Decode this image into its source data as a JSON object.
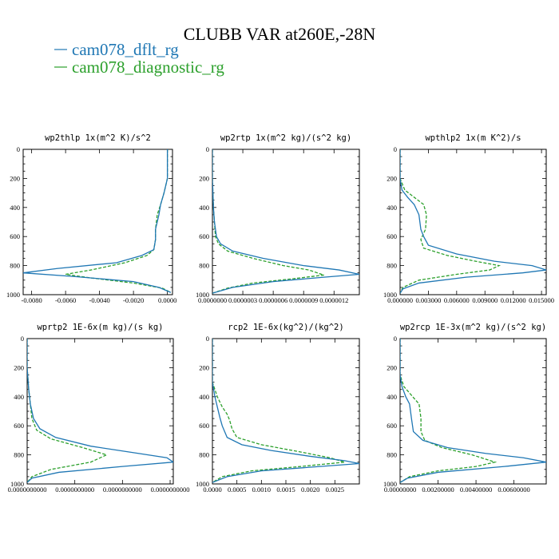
{
  "figure": {
    "title": "CLUBB VAR at260E,-28N",
    "legend": [
      {
        "label": "cam078_dflt_rg",
        "color": "#1f77b4",
        "dash": "solid"
      },
      {
        "label": "cam078_diagnostic_rg",
        "color": "#2ca02c",
        "dash": "dashed"
      }
    ]
  },
  "chart_data": [
    {
      "type": "line",
      "title": "wp2thlp  1x(m^2 K)/s^2",
      "xlim": [
        -0.0085,
        0.0003
      ],
      "ylim": [
        1000,
        0
      ],
      "grid": false,
      "x_ticks": [
        -0.008,
        -0.006,
        -0.004,
        -0.002,
        0
      ],
      "x_tick_labels": [
        "-0.0080",
        "-0.0060",
        "-0.0040",
        "-0.0020",
        "0.0000"
      ],
      "y_ticks": [
        0,
        200,
        400,
        600,
        800,
        1000
      ],
      "y_tick_labels": [
        "0",
        "200",
        "400",
        "600",
        "800",
        "1000"
      ],
      "series": [
        {
          "name": "cam078_dflt_rg",
          "color": "#1f77b4",
          "x": [
            0.0,
            0.0,
            0.0,
            -0.0002,
            -0.0004,
            -0.0005,
            -0.0007,
            -0.0007,
            -0.0008,
            -0.0015,
            -0.003,
            -0.0065,
            -0.0085,
            -0.0055,
            -0.002,
            -0.0005,
            0.0002
          ],
          "y": [
            0,
            100,
            200,
            300,
            380,
            450,
            550,
            620,
            690,
            730,
            780,
            820,
            850,
            875,
            910,
            950,
            985
          ]
        },
        {
          "name": "cam078_diagnostic_rg",
          "color": "#2ca02c",
          "x": [
            0.0,
            0.0,
            0.0,
            -0.0002,
            -0.0004,
            -0.0006,
            -0.0007,
            -0.0007,
            -0.0008,
            -0.0012,
            -0.0025,
            -0.0045,
            -0.006,
            -0.0045,
            -0.002,
            -0.0003,
            0.0002
          ],
          "y": [
            0,
            100,
            200,
            300,
            380,
            450,
            550,
            620,
            690,
            730,
            780,
            830,
            860,
            885,
            920,
            955,
            985
          ]
        }
      ]
    },
    {
      "type": "line",
      "title": "wp2rtp  1x(m^2 kg)/(s^2 kg)",
      "xlim": [
        0,
        1.45e-06
      ],
      "ylim": [
        1000,
        0
      ],
      "grid": false,
      "x_ticks": [
        0,
        3e-07,
        6e-07,
        9e-07,
        1.2e-06
      ],
      "x_tick_labels": [
        "0.0000000",
        "0.0000003",
        "0.0000006",
        "0.0000009",
        "0.0000012"
      ],
      "y_ticks": [
        0,
        200,
        400,
        600,
        800,
        1000
      ],
      "y_tick_labels": [
        "0",
        "200",
        "400",
        "600",
        "800",
        "1000"
      ],
      "series": [
        {
          "name": "cam078_dflt_rg",
          "color": "#1f77b4",
          "x": [
            0,
            0,
            5e-09,
            1e-08,
            2e-08,
            4e-08,
            8e-08,
            2e-07,
            5e-07,
            9e-07,
            1.25e-06,
            1.45e-06,
            1.1e-06,
            6e-07,
            2e-07,
            0
          ],
          "y": [
            0,
            200,
            300,
            400,
            500,
            600,
            650,
            700,
            750,
            800,
            830,
            860,
            880,
            910,
            950,
            990
          ]
        },
        {
          "name": "cam078_diagnostic_rg",
          "color": "#2ca02c",
          "x": [
            0,
            0,
            5e-09,
            1e-08,
            2e-08,
            3e-08,
            6e-08,
            1.5e-07,
            4e-07,
            7e-07,
            9.5e-07,
            1.1e-06,
            8e-07,
            4e-07,
            1.5e-07,
            0
          ],
          "y": [
            0,
            200,
            300,
            400,
            500,
            600,
            650,
            700,
            750,
            800,
            830,
            865,
            890,
            920,
            955,
            990
          ]
        }
      ]
    },
    {
      "type": "line",
      "title": "wpthlp2  1x(m K^2)/s",
      "xlim": [
        0,
        0.0155
      ],
      "ylim": [
        1000,
        0
      ],
      "grid": false,
      "x_ticks": [
        0,
        0.003,
        0.006,
        0.009,
        0.012,
        0.015
      ],
      "x_tick_labels": [
        "0.000000",
        "0.003000",
        "0.006000",
        "0.009000",
        "0.012000",
        "0.015000"
      ],
      "y_ticks": [
        0,
        200,
        400,
        600,
        800,
        1000
      ],
      "y_tick_labels": [
        "0",
        "200",
        "400",
        "600",
        "800",
        "1000"
      ],
      "series": [
        {
          "name": "cam078_dflt_rg",
          "color": "#1f77b4",
          "x": [
            0,
            0,
            0.0002,
            0.0008,
            0.0015,
            0.002,
            0.0022,
            0.0025,
            0.003,
            0.006,
            0.01,
            0.014,
            0.0155,
            0.013,
            0.007,
            0.002,
            0.0003,
            0
          ],
          "y": [
            0,
            200,
            280,
            330,
            380,
            450,
            550,
            600,
            660,
            720,
            770,
            800,
            830,
            850,
            880,
            920,
            960,
            990
          ]
        },
        {
          "name": "cam078_diagnostic_rg",
          "color": "#2ca02c",
          "x": [
            0,
            0,
            0.0005,
            0.0015,
            0.0025,
            0.0028,
            0.0027,
            0.0022,
            0.0025,
            0.005,
            0.008,
            0.0105,
            0.0095,
            0.006,
            0.002,
            0.0003,
            0
          ],
          "y": [
            0,
            200,
            280,
            330,
            380,
            450,
            550,
            620,
            680,
            730,
            770,
            800,
            830,
            860,
            900,
            950,
            990
          ]
        }
      ]
    },
    {
      "type": "line",
      "title": "wprtp2  1E-6x(m kg)/(s kg)",
      "xlim": [
        0,
        9.2e-11
      ],
      "ylim": [
        1000,
        0
      ],
      "grid": false,
      "x_ticks": [
        0,
        3e-11,
        6e-11,
        9e-11
      ],
      "x_tick_labels": [
        "0.0000000000",
        "0.0000000000",
        "0.0000000000",
        "0.0000000000"
      ],
      "y_ticks": [
        0,
        200,
        400,
        600,
        800,
        1000
      ],
      "y_tick_labels": [
        "0",
        "200",
        "400",
        "600",
        "800",
        "1000"
      ],
      "series": [
        {
          "name": "cam078_dflt_rg",
          "color": "#1f77b4",
          "x": [
            0,
            0,
            1e-12,
            2e-12,
            4e-12,
            8e-12,
            1.8e-11,
            4e-11,
            7e-11,
            8.8e-11,
            9.2e-11,
            6e-11,
            2e-11,
            3e-12,
            0
          ],
          "y": [
            0,
            200,
            350,
            450,
            550,
            620,
            680,
            740,
            790,
            820,
            850,
            880,
            920,
            960,
            990
          ]
        },
        {
          "name": "cam078_diagnostic_rg",
          "color": "#2ca02c",
          "x": [
            0,
            0,
            1e-12,
            2e-12,
            3e-12,
            6e-12,
            1.5e-11,
            3.5e-11,
            5e-11,
            4e-11,
            1.5e-11,
            3e-12,
            0
          ],
          "y": [
            0,
            200,
            350,
            450,
            550,
            630,
            690,
            750,
            800,
            850,
            900,
            950,
            990
          ]
        }
      ]
    },
    {
      "type": "line",
      "title": "rcp2  1E-6x(kg^2)/(kg^2)",
      "xlim": [
        0,
        0.003
      ],
      "ylim": [
        1000,
        0
      ],
      "grid": false,
      "x_ticks": [
        0,
        0.0005,
        0.001,
        0.0015,
        0.002,
        0.0025
      ],
      "x_tick_labels": [
        "0.0000",
        "0.0005",
        "0.0010",
        "0.0015",
        "0.0020",
        "0.0025"
      ],
      "y_ticks": [
        0,
        200,
        400,
        600,
        800,
        1000
      ],
      "y_tick_labels": [
        "0",
        "200",
        "400",
        "600",
        "800",
        "1000"
      ],
      "series": [
        {
          "name": "cam078_dflt_rg",
          "color": "#1f77b4",
          "x": [
            0,
            0,
            5e-05,
            0.0001,
            0.00015,
            0.0002,
            0.0003,
            0.0006,
            0.0012,
            0.002,
            0.0027,
            0.003,
            0.0022,
            0.001,
            0.0003,
            0
          ],
          "y": [
            0,
            300,
            400,
            470,
            540,
            600,
            680,
            730,
            770,
            810,
            840,
            860,
            880,
            910,
            950,
            990
          ]
        },
        {
          "name": "cam078_diagnostic_rg",
          "color": "#2ca02c",
          "x": [
            0,
            0,
            0.0001,
            0.0002,
            0.0003,
            0.00035,
            0.0004,
            0.0005,
            0.001,
            0.0018,
            0.0024,
            0.0027,
            0.0018,
            0.0008,
            0.0002,
            0
          ],
          "y": [
            0,
            300,
            400,
            470,
            520,
            560,
            620,
            680,
            730,
            780,
            820,
            850,
            880,
            910,
            950,
            990
          ]
        }
      ]
    },
    {
      "type": "line",
      "title": "wp2rcp  1E-3x(m^2 kg)/(s^2 kg)",
      "xlim": [
        0,
        0.0077
      ],
      "ylim": [
        1000,
        0
      ],
      "grid": false,
      "x_ticks": [
        0,
        0.002,
        0.004,
        0.006
      ],
      "x_tick_labels": [
        "0.00000000",
        "0.00200000",
        "0.00400000",
        "0.00600000"
      ],
      "y_ticks": [
        0,
        200,
        400,
        600,
        800,
        1000
      ],
      "y_tick_labels": [
        "0",
        "200",
        "400",
        "600",
        "800",
        "1000"
      ],
      "series": [
        {
          "name": "cam078_dflt_rg",
          "color": "#1f77b4",
          "x": [
            0,
            0,
            0.0001,
            0.0003,
            0.0005,
            0.0006,
            0.0007,
            0.0012,
            0.0025,
            0.0045,
            0.0065,
            0.0077,
            0.0055,
            0.002,
            0.0004,
            0
          ],
          "y": [
            0,
            250,
            330,
            400,
            450,
            550,
            640,
            700,
            750,
            790,
            820,
            850,
            880,
            920,
            960,
            990
          ]
        },
        {
          "name": "cam078_diagnostic_rg",
          "color": "#2ca02c",
          "x": [
            0,
            0,
            0.0002,
            0.0006,
            0.001,
            0.0011,
            0.0011,
            0.0013,
            0.0022,
            0.0038,
            0.005,
            0.004,
            0.002,
            0.0005,
            0
          ],
          "y": [
            0,
            250,
            330,
            390,
            450,
            550,
            640,
            700,
            750,
            800,
            850,
            880,
            910,
            950,
            990
          ]
        }
      ]
    }
  ]
}
